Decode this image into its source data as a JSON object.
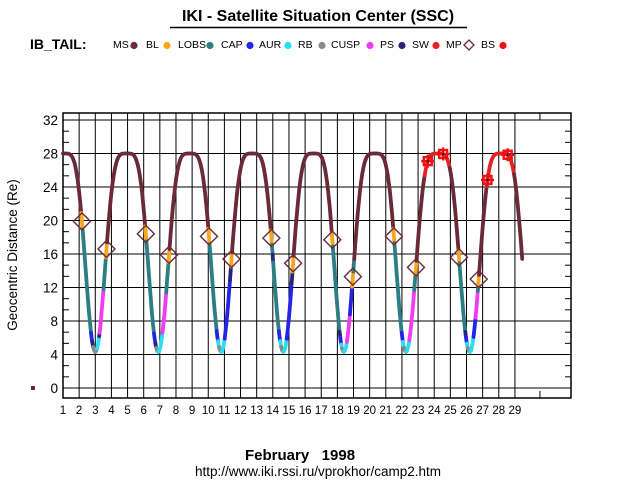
{
  "header": {
    "title": "IKI - Satellite Situation Center (SSC)",
    "dataset_label": "IB_TAIL:"
  },
  "legend": {
    "items": [
      {
        "label": "MS",
        "color": "#6b2a38",
        "marker": "dot"
      },
      {
        "label": "BL",
        "color": "#ffa41e",
        "marker": "dot"
      },
      {
        "label": "LOBS",
        "color": "#2d7d85",
        "marker": "dot"
      },
      {
        "label": "CAP",
        "color": "#2424e6",
        "marker": "dot"
      },
      {
        "label": "AUR",
        "color": "#2cdcf0",
        "marker": "dot"
      },
      {
        "label": "RB",
        "color": "#8a8a8a",
        "marker": "dot"
      },
      {
        "label": "CUSP",
        "color": "#f23cf2",
        "marker": "dot"
      },
      {
        "label": "PS",
        "color": "#242478",
        "marker": "dot"
      },
      {
        "label": "SW",
        "color": "#e62222",
        "marker": "dot"
      },
      {
        "label": "MP",
        "color": "#6b2a38",
        "marker": "diamond-open"
      },
      {
        "label": "BS",
        "color": "#f01010",
        "marker": "dot"
      }
    ]
  },
  "footer": {
    "month_year": "February   1998",
    "url": "http://www.iki.rssi.ru/vprokhor/camp2.htm"
  },
  "chart_data": {
    "type": "line",
    "title": "IKI - Satellite Situation Center (SSC)",
    "series_label": "IB_TAIL",
    "xlabel": "February 1998",
    "ylabel": "Geocentric Distance (Re)",
    "x_ticks": [
      1,
      2,
      3,
      4,
      5,
      6,
      7,
      8,
      9,
      10,
      11,
      12,
      13,
      14,
      15,
      16,
      17,
      18,
      19,
      20,
      21,
      22,
      23,
      24,
      25,
      26,
      27,
      28,
      29
    ],
    "y_ticks": [
      0,
      4,
      8,
      12,
      16,
      20,
      24,
      28,
      32
    ],
    "y_minor_step": 1.3333,
    "x_range_frame": [
      1,
      32.45
    ],
    "y_range_frame": [
      -1.2,
      32.85
    ],
    "x_axis_extra_tick_day": 30.55,
    "grid": "on",
    "region_colors": {
      "MS": "#6b2a38",
      "BL": "#ffa41e",
      "LOBS": "#2d7d85",
      "CAP": "#2424e6",
      "AUR": "#2cdcf0",
      "RB": "#8a8a8a",
      "CUSP": "#f23cf2",
      "PS": "#242478",
      "SW": "#e62222",
      "MP": "#6b2a38",
      "BS": "#f01010"
    },
    "orbit_model": {
      "apogee_re": 28.0,
      "perigee_re": 4.3,
      "shape_exponent": 2.2,
      "valley_days": [
        -0.87,
        3.0,
        6.9,
        10.8,
        14.65,
        18.4,
        22.25,
        26.2,
        30.1
      ],
      "t_start": 1.0,
      "t_end": 29.45
    },
    "windows": [
      {
        "up": [
          [
            4.3,
            28,
            "MS"
          ]
        ],
        "down": [
          [
            28,
            20.9,
            "MS"
          ],
          [
            20.9,
            18.9,
            "BL"
          ],
          [
            18.9,
            6.6,
            "LOBS"
          ],
          [
            6.6,
            5.5,
            "CAP"
          ],
          [
            5.5,
            4.9,
            "PS"
          ],
          [
            4.9,
            4.3,
            "RB"
          ]
        ]
      },
      {
        "up": [
          [
            4.3,
            4.7,
            "RB"
          ],
          [
            4.7,
            6.2,
            "AUR"
          ],
          [
            6.2,
            6.6,
            "PS"
          ],
          [
            6.6,
            11.8,
            "CUSP"
          ],
          [
            11.8,
            15.6,
            "LOBS"
          ],
          [
            15.6,
            17.4,
            "BL"
          ],
          [
            17.4,
            28,
            "MS"
          ]
        ],
        "down": [
          [
            28,
            19.3,
            "MS"
          ],
          [
            19.3,
            17.5,
            "BL"
          ],
          [
            17.5,
            6.5,
            "LOBS"
          ],
          [
            6.5,
            5.3,
            "CAP"
          ],
          [
            5.3,
            4.8,
            "PS"
          ],
          [
            4.8,
            4.3,
            "RB"
          ]
        ]
      },
      {
        "up": [
          [
            4.3,
            6.6,
            "AUR"
          ],
          [
            6.6,
            11.4,
            "CUSP"
          ],
          [
            11.4,
            15.0,
            "LOBS"
          ],
          [
            15.0,
            16.6,
            "BL"
          ],
          [
            16.6,
            28,
            "MS"
          ]
        ],
        "down": [
          [
            28,
            19.0,
            "MS"
          ],
          [
            19.0,
            17.2,
            "BL"
          ],
          [
            17.2,
            6.8,
            "LOBS"
          ],
          [
            6.8,
            5.6,
            "CAP"
          ],
          [
            5.6,
            4.9,
            "AUR"
          ],
          [
            4.9,
            4.3,
            "RB"
          ]
        ]
      },
      {
        "up": [
          [
            4.3,
            5.9,
            "AUR"
          ],
          [
            5.9,
            12.9,
            "CAP"
          ],
          [
            12.9,
            14.5,
            "PS"
          ],
          [
            14.5,
            16.2,
            "BL"
          ],
          [
            16.2,
            28,
            "MS"
          ]
        ],
        "down": [
          [
            28,
            18.8,
            "MS"
          ],
          [
            18.8,
            17.1,
            "BL"
          ],
          [
            17.1,
            15.9,
            "LOBS"
          ],
          [
            15.9,
            15.0,
            "PS"
          ],
          [
            15.0,
            6.8,
            "LOBS"
          ],
          [
            6.8,
            5.6,
            "CAP"
          ],
          [
            5.6,
            4.9,
            "AUR"
          ],
          [
            4.9,
            4.3,
            "RB"
          ]
        ]
      },
      {
        "up": [
          [
            4.3,
            5.9,
            "AUR"
          ],
          [
            5.9,
            12.5,
            "CAP"
          ],
          [
            12.5,
            13.9,
            "PS"
          ],
          [
            13.9,
            15.8,
            "BL"
          ],
          [
            15.8,
            28,
            "MS"
          ]
        ],
        "down": [
          [
            28,
            18.5,
            "MS"
          ],
          [
            18.5,
            16.9,
            "BL"
          ],
          [
            16.9,
            6.7,
            "LOBS"
          ],
          [
            6.7,
            6.0,
            "PS"
          ],
          [
            6.0,
            5.2,
            "CAP"
          ],
          [
            5.2,
            4.7,
            "AUR"
          ],
          [
            4.7,
            4.3,
            "RB"
          ]
        ]
      },
      {
        "up": [
          [
            4.3,
            5.5,
            "AUR"
          ],
          [
            5.5,
            8.8,
            "CUSP"
          ],
          [
            8.8,
            12.1,
            "CAP"
          ],
          [
            12.1,
            13.9,
            "BL"
          ],
          [
            13.9,
            15.4,
            "LOBS"
          ],
          [
            15.4,
            28,
            "MS"
          ]
        ],
        "down": [
          [
            28,
            19.0,
            "MS"
          ],
          [
            19.0,
            17.3,
            "BL"
          ],
          [
            17.3,
            6.6,
            "LOBS"
          ],
          [
            6.6,
            5.5,
            "CAP"
          ],
          [
            5.5,
            4.8,
            "AUR"
          ],
          [
            4.8,
            4.3,
            "RB"
          ]
        ]
      },
      {
        "up": [
          [
            4.3,
            5.7,
            "AUR"
          ],
          [
            5.7,
            11.7,
            "CUSP"
          ],
          [
            11.7,
            13.6,
            "LOBS"
          ],
          [
            13.6,
            15.2,
            "BL"
          ],
          [
            15.2,
            25.4,
            "MS"
          ],
          [
            25.4,
            28,
            "SW"
          ]
        ],
        "down": [
          [
            28,
            26.3,
            "SW"
          ],
          [
            26.3,
            16.4,
            "MS"
          ],
          [
            16.4,
            14.9,
            "BL"
          ],
          [
            14.9,
            6.7,
            "LOBS"
          ],
          [
            6.7,
            6.1,
            "PS"
          ],
          [
            6.1,
            5.3,
            "CAP"
          ],
          [
            5.3,
            4.8,
            "AUR"
          ],
          [
            4.8,
            4.3,
            "RB"
          ]
        ]
      },
      {
        "up": [
          [
            4.3,
            6.1,
            "AUR"
          ],
          [
            6.1,
            8.4,
            "CAP"
          ],
          [
            8.4,
            11.6,
            "CUSP"
          ],
          [
            11.6,
            12.4,
            "LOBS"
          ],
          [
            12.4,
            13.5,
            "BL"
          ],
          [
            13.5,
            24.1,
            "MS"
          ],
          [
            24.1,
            28,
            "SW"
          ]
        ],
        "down": [
          [
            28,
            25.5,
            "SW"
          ],
          [
            25.5,
            14.0,
            "MS"
          ]
        ]
      }
    ],
    "mp_crossings": [
      {
        "w": 0,
        "leg": "down",
        "re": 19.9
      },
      {
        "w": 1,
        "leg": "up",
        "re": 16.6
      },
      {
        "w": 1,
        "leg": "down",
        "re": 18.4
      },
      {
        "w": 2,
        "leg": "up",
        "re": 15.9
      },
      {
        "w": 2,
        "leg": "down",
        "re": 18.1
      },
      {
        "w": 3,
        "leg": "up",
        "re": 15.4
      },
      {
        "w": 3,
        "leg": "down",
        "re": 17.9
      },
      {
        "w": 4,
        "leg": "up",
        "re": 14.9
      },
      {
        "w": 4,
        "leg": "down",
        "re": 17.7
      },
      {
        "w": 5,
        "leg": "up",
        "re": 13.3
      },
      {
        "w": 5,
        "leg": "down",
        "re": 18.1
      },
      {
        "w": 6,
        "leg": "up",
        "re": 14.4
      },
      {
        "w": 6,
        "leg": "down",
        "re": 15.6
      },
      {
        "w": 7,
        "leg": "up",
        "re": 13.0
      }
    ],
    "bs_crossing_days": [
      23.6,
      24.55,
      27.3,
      28.55
    ],
    "stray_origin_point": {
      "re": 0,
      "color": "MS"
    }
  }
}
